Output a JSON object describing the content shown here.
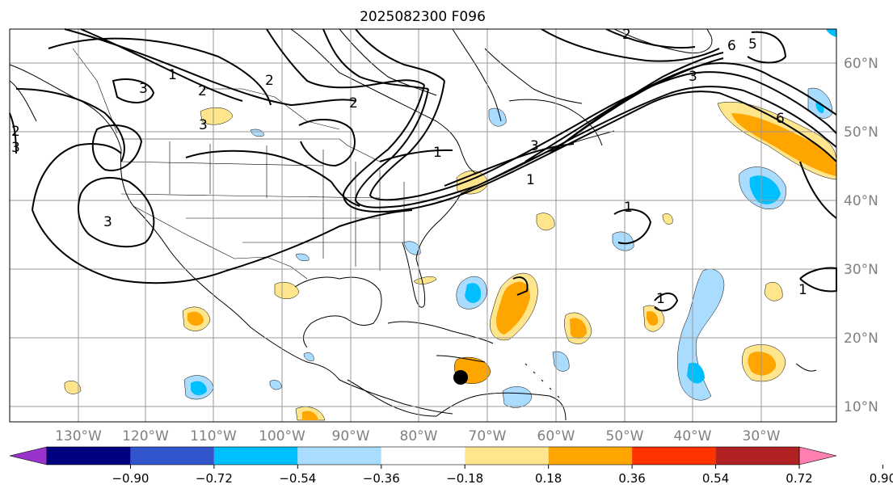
{
  "title": "2025082300 F096",
  "longitude_ticks": [
    "130°W",
    "120°W",
    "110°W",
    "100°W",
    "90°W",
    "80°W",
    "70°W",
    "60°W",
    "50°W",
    "40°W",
    "30°W"
  ],
  "latitude_ticks": [
    "60°N",
    "50°N",
    "40°N",
    "30°N",
    "20°N",
    "10°N"
  ],
  "colorbar": {
    "ticks": [
      "−0.90",
      "−0.72",
      "−0.54",
      "−0.36",
      "−0.18",
      "0.18",
      "0.36",
      "0.54",
      "0.72",
      "0.90"
    ],
    "colors": [
      "#9933cc",
      "#000080",
      "#3355cc",
      "#00bfff",
      "#aadcff",
      "#ffffff",
      "#ffe68c",
      "#ffa500",
      "#ff3300",
      "#b22222",
      "#ff80b0"
    ]
  },
  "contour_labels": [
    "1",
    "2",
    "3",
    "1",
    "2",
    "3",
    "3",
    "3",
    "2",
    "2",
    "3",
    "2",
    "6",
    "5",
    "3",
    "6",
    "1",
    "1",
    "1",
    "1"
  ],
  "colors": {
    "fill_pos_1": "#ffe68c",
    "fill_pos_2": "#ffa500",
    "fill_neg_1": "#aadcff",
    "fill_neg_2": "#00bfff",
    "grid": "#999999"
  }
}
